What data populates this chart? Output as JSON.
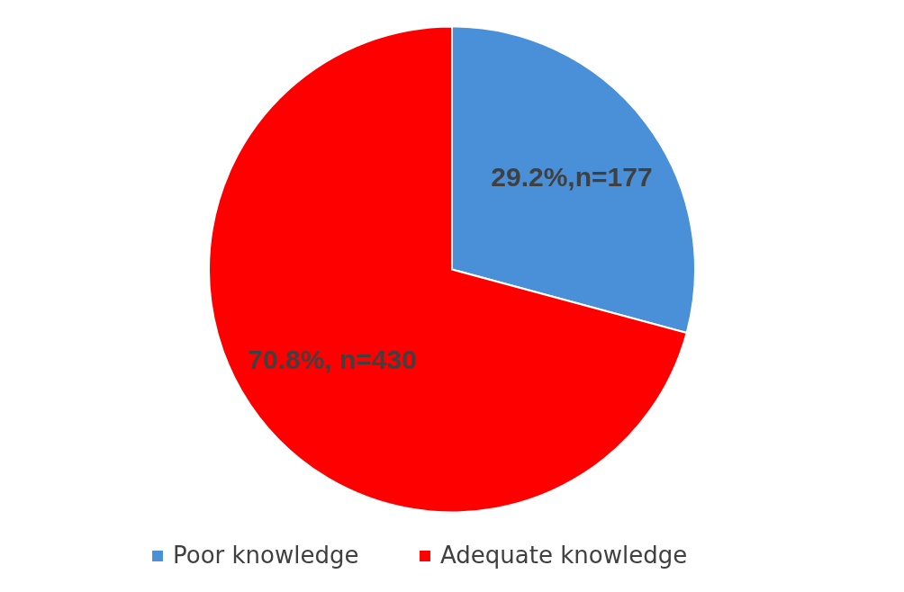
{
  "chart_data": {
    "type": "pie",
    "categories": [
      "Poor knowledge",
      "Adequate knowledge"
    ],
    "values": [
      29.2,
      70.8
    ],
    "colors": [
      "#4a90d9",
      "#ff0000"
    ],
    "value_labels": [
      "29.2%,n=177",
      "70.8%, n=430"
    ],
    "legend": "bottom"
  }
}
